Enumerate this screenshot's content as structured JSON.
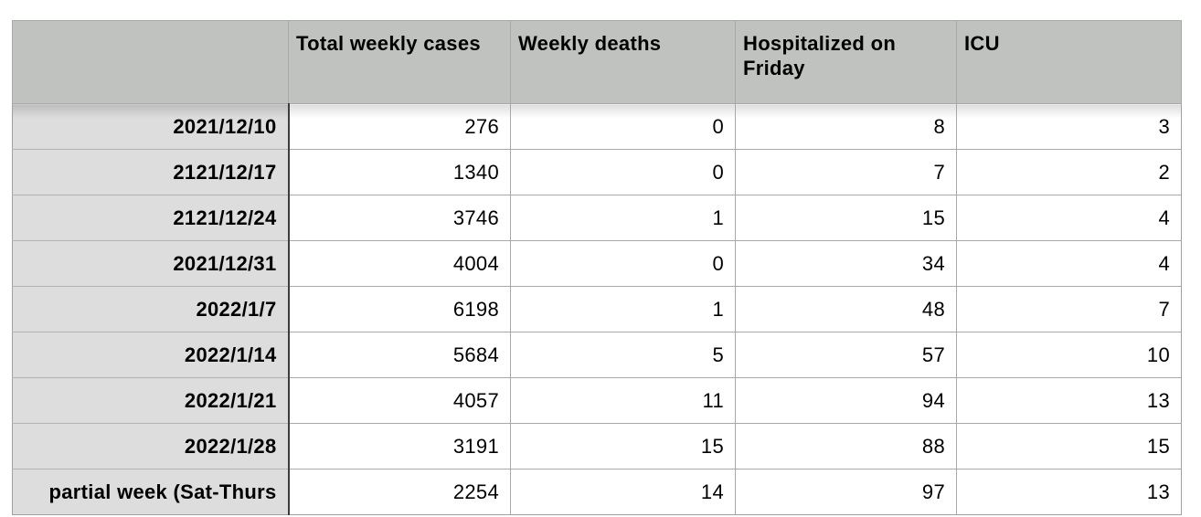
{
  "table": {
    "columns": [
      "",
      "Total weekly cases",
      "Weekly deaths",
      "Hospitalized on Friday",
      "ICU"
    ],
    "rows": [
      {
        "label": "2021/12/10",
        "values": [
          "276",
          "0",
          "8",
          "3"
        ]
      },
      {
        "label": "2121/12/17",
        "values": [
          "1340",
          "0",
          "7",
          "2"
        ]
      },
      {
        "label": "2121/12/24",
        "values": [
          "3746",
          "1",
          "15",
          "4"
        ]
      },
      {
        "label": "2021/12/31",
        "values": [
          "4004",
          "0",
          "34",
          "4"
        ]
      },
      {
        "label": "2022/1/7",
        "values": [
          "6198",
          "1",
          "48",
          "7"
        ]
      },
      {
        "label": "2022/1/14",
        "values": [
          "5684",
          "5",
          "57",
          "10"
        ]
      },
      {
        "label": "2022/1/21",
        "values": [
          "4057",
          "11",
          "94",
          "13"
        ]
      },
      {
        "label": "2022/1/28",
        "values": [
          "3191",
          "15",
          "88",
          "15"
        ]
      },
      {
        "label": "partial week (Sat-Thurs",
        "values": [
          "2254",
          "14",
          "97",
          "13"
        ]
      }
    ],
    "colors": {
      "header_background": "#c0c2c0",
      "row_header_background": "#dcdddc",
      "cell_background": "#ffffff",
      "header_rule": "#4a4a4a",
      "grid_line": "#c2c2c2",
      "text": "#000000"
    }
  }
}
